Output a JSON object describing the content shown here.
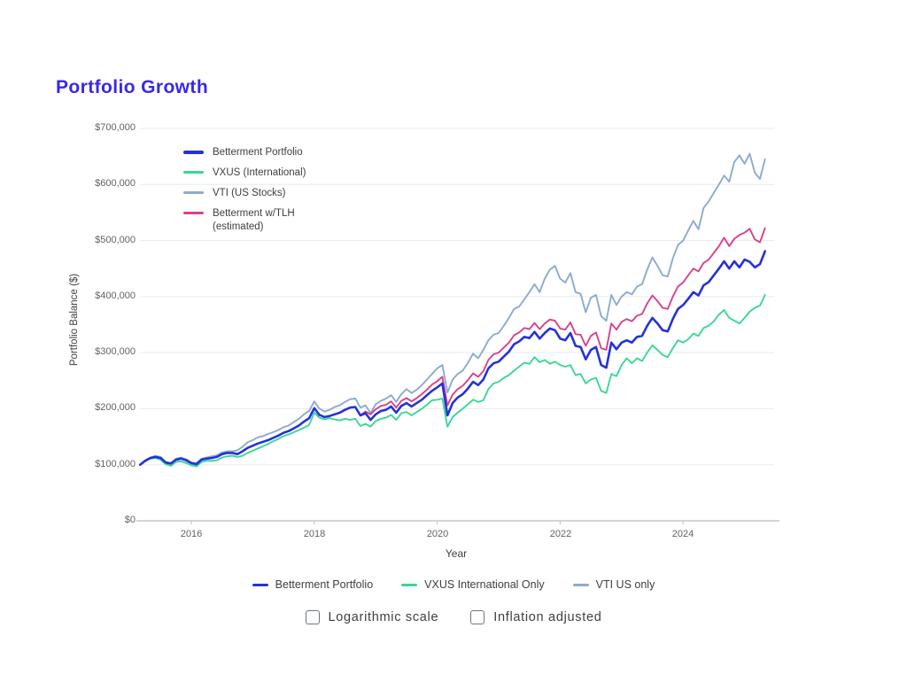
{
  "page": {
    "title": "Portfolio Growth",
    "title_color": "#3929e6"
  },
  "chart_data": {
    "type": "line",
    "title": "Portfolio Growth",
    "xlabel": "Year",
    "ylabel": "Portfolio Balance ($)",
    "x_unit": "monthly",
    "x_start": "2015-03",
    "x_end": "2025-05",
    "xlim": [
      2015.15,
      2025.45
    ],
    "ylim": [
      0,
      700000
    ],
    "values_unit": "USD thousands",
    "grid": "horizontal",
    "legend_position": "top-left-inside",
    "x_tick_labels": [
      "2016",
      "2018",
      "2020",
      "2022",
      "2024"
    ],
    "y_tick_labels": [
      "$700,000",
      "$600,000",
      "$500,000",
      "$400,000",
      "$300,000",
      "$200,000",
      "$100,000",
      "$0"
    ],
    "series": [
      {
        "name": "Betterment Portfolio",
        "color": "#2432d8",
        "values": [
          100,
          107,
          112,
          114,
          112,
          104,
          102,
          109,
          111,
          108,
          103,
          101,
          109,
          111,
          112,
          114,
          119,
          121,
          121,
          119,
          124,
          130,
          134,
          138,
          141,
          144,
          148,
          152,
          157,
          160,
          165,
          170,
          177,
          183,
          201,
          189,
          185,
          187,
          190,
          193,
          198,
          202,
          203,
          188,
          192,
          180,
          190,
          196,
          198,
          204,
          193,
          205,
          210,
          204,
          210,
          216,
          224,
          232,
          238,
          245,
          188,
          210,
          220,
          226,
          236,
          248,
          242,
          252,
          272,
          281,
          284,
          293,
          302,
          315,
          320,
          328,
          326,
          337,
          325,
          335,
          343,
          340,
          325,
          322,
          335,
          312,
          310,
          288,
          305,
          310,
          278,
          273,
          318,
          306,
          318,
          322,
          318,
          328,
          330,
          348,
          362,
          352,
          340,
          338,
          360,
          378,
          385,
          396,
          408,
          402,
          420,
          426,
          438,
          450,
          463,
          450,
          463,
          452,
          466,
          462,
          452,
          458,
          481
        ]
      },
      {
        "name": "VXUS (International)",
        "color": "#3bd795",
        "values": [
          100,
          107,
          111,
          112,
          109,
          101,
          98,
          105,
          106,
          103,
          99,
          97,
          105,
          107,
          107,
          108,
          113,
          115,
          116,
          114,
          116,
          121,
          125,
          129,
          133,
          137,
          142,
          146,
          151,
          154,
          158,
          162,
          166,
          171,
          193,
          184,
          181,
          183,
          181,
          179,
          182,
          180,
          182,
          169,
          173,
          168,
          178,
          182,
          184,
          189,
          180,
          192,
          194,
          188,
          194,
          200,
          207,
          215,
          216,
          218,
          168,
          185,
          193,
          200,
          208,
          216,
          212,
          215,
          235,
          245,
          248,
          255,
          260,
          268,
          275,
          282,
          280,
          292,
          283,
          287,
          280,
          284,
          278,
          275,
          278,
          260,
          262,
          245,
          252,
          255,
          232,
          228,
          262,
          258,
          278,
          290,
          281,
          290,
          285,
          300,
          313,
          305,
          296,
          292,
          308,
          322,
          318,
          324,
          334,
          330,
          344,
          348,
          356,
          368,
          376,
          362,
          357,
          352,
          362,
          373,
          380,
          384,
          403
        ]
      },
      {
        "name": "VTI (US Stocks)",
        "color": "#8dabcd",
        "values": [
          100,
          108,
          113,
          116,
          114,
          105,
          103,
          111,
          113,
          110,
          104,
          103,
          111,
          113,
          115,
          117,
          122,
          124,
          124,
          126,
          132,
          140,
          144,
          149,
          151,
          155,
          158,
          162,
          167,
          170,
          176,
          182,
          190,
          196,
          213,
          200,
          195,
          198,
          203,
          206,
          212,
          217,
          218,
          202,
          206,
          192,
          208,
          214,
          218,
          224,
          212,
          226,
          235,
          228,
          234,
          242,
          252,
          262,
          272,
          278,
          229,
          252,
          262,
          268,
          282,
          298,
          290,
          305,
          322,
          332,
          335,
          348,
          362,
          378,
          382,
          395,
          408,
          422,
          408,
          432,
          448,
          455,
          432,
          425,
          442,
          408,
          405,
          372,
          398,
          403,
          365,
          357,
          403,
          385,
          400,
          408,
          404,
          418,
          422,
          448,
          470,
          455,
          438,
          436,
          468,
          492,
          500,
          518,
          535,
          520,
          558,
          570,
          585,
          600,
          616,
          605,
          640,
          652,
          637,
          655,
          621,
          610,
          645
        ]
      },
      {
        "name": "Betterment w/TLH (estimated)",
        "color": "#d8418d",
        "values": [
          null,
          null,
          null,
          null,
          null,
          null,
          null,
          null,
          null,
          null,
          null,
          null,
          null,
          null,
          null,
          null,
          null,
          null,
          null,
          null,
          null,
          null,
          null,
          null,
          null,
          null,
          null,
          null,
          null,
          null,
          null,
          null,
          null,
          null,
          null,
          null,
          null,
          null,
          null,
          null,
          null,
          null,
          null,
          188,
          195,
          190,
          199,
          205,
          207,
          213,
          202,
          214,
          219,
          213,
          219,
          226,
          234,
          243,
          249,
          257,
          206,
          225,
          235,
          241,
          251,
          263,
          257,
          267,
          287,
          297,
          300,
          309,
          318,
          331,
          336,
          344,
          342,
          353,
          342,
          352,
          359,
          357,
          343,
          341,
          354,
          333,
          332,
          312,
          330,
          336,
          308,
          305,
          352,
          341,
          355,
          360,
          356,
          366,
          369,
          388,
          402,
          392,
          380,
          378,
          400,
          418,
          425,
          438,
          450,
          445,
          460,
          466,
          478,
          490,
          505,
          490,
          503,
          510,
          514,
          521,
          502,
          497,
          522
        ]
      }
    ]
  },
  "bottom_legend": [
    {
      "label": "Betterment Portfolio",
      "color": "#2432d8"
    },
    {
      "label": "VXUS International Only",
      "color": "#3bd795"
    },
    {
      "label": "VTI US only",
      "color": "#8dabcd"
    }
  ],
  "controls": {
    "checkboxes": [
      {
        "label": "Logarithmic scale",
        "checked": false
      },
      {
        "label": "Inflation adjusted",
        "checked": false
      }
    ]
  }
}
